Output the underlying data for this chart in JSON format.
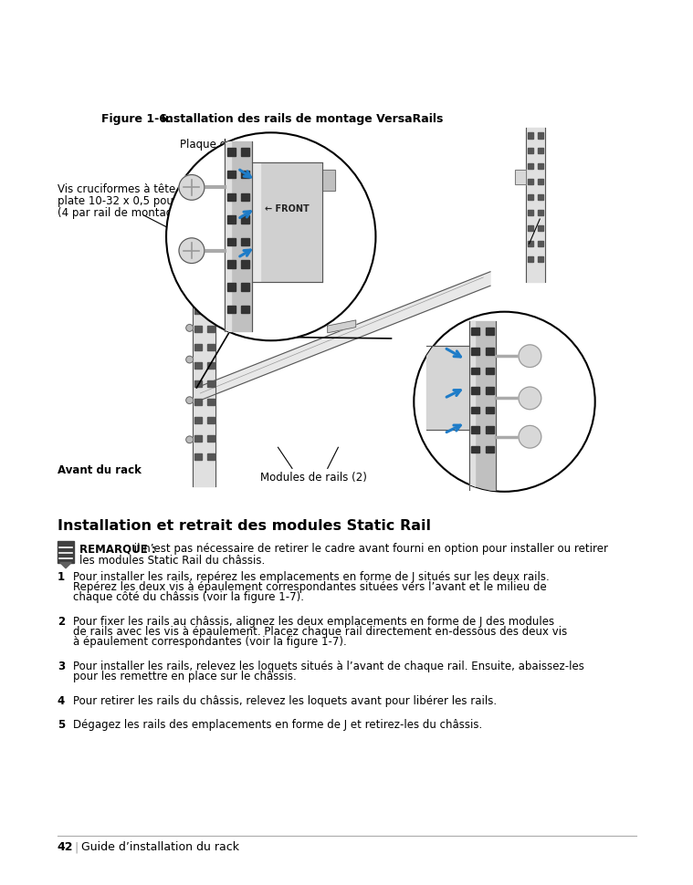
{
  "figure_title_bold": "Figure 1-6.",
  "figure_title_rest": "    Installation des rails de montage VersaRails",
  "label_plaque": "Plaque de fixation",
  "label_vis_line1": "Vis cruciformes à tête",
  "label_vis_line2": "plate 10-32 x 0,5 pouce",
  "label_vis_line3": "(4 par rail de montage)",
  "label_avant": "Avant du rack",
  "label_modules": "Modules de rails (2)",
  "section_title": "Installation et retrait des modules Static Rail",
  "note_bold": "REMARQUE :",
  "note_text_line1": " il n’est pas nécessaire de retirer le cadre avant fourni en option pour installer ou retirer",
  "note_text_line2": "les modules Static Rail du châssis.",
  "steps": [
    {
      "num": "1",
      "lines": [
        "Pour installer les rails, repérez les emplacements en forme de J situés sur les deux rails.",
        "Repérez les deux vis à épaulement correspondantes situées vers l’avant et le milieu de",
        "chaque côté du châssis (voir la figure 1-7)."
      ]
    },
    {
      "num": "2",
      "lines": [
        "Pour fixer les rails au châssis, alignez les deux emplacements en forme de J des modules",
        "de rails avec les vis à épaulement. Placez chaque rail directement en-dessous des deux vis",
        "à épaulement correspondantes (voir la figure 1-7)."
      ]
    },
    {
      "num": "3",
      "lines": [
        "Pour installer les rails, relevez les loquets situés à l’avant de chaque rail. Ensuite, abaissez-les",
        "pour les remettre en place sur le châssis."
      ]
    },
    {
      "num": "4",
      "lines": [
        "Pour retirer les rails du châssis, relevez les loquets avant pour libérer les rails."
      ]
    },
    {
      "num": "5",
      "lines": [
        "Dégagez les rails des emplacements en forme de J et retirez-les du châssis."
      ]
    }
  ],
  "footer_page": "42",
  "footer_text": "Guide d’installation du rack",
  "bg_color": "#ffffff",
  "text_color": "#000000",
  "blue_color": "#1E7CC8",
  "gray_light": "#c8c8c8",
  "gray_mid": "#999999",
  "gray_dark": "#555555",
  "black": "#000000"
}
